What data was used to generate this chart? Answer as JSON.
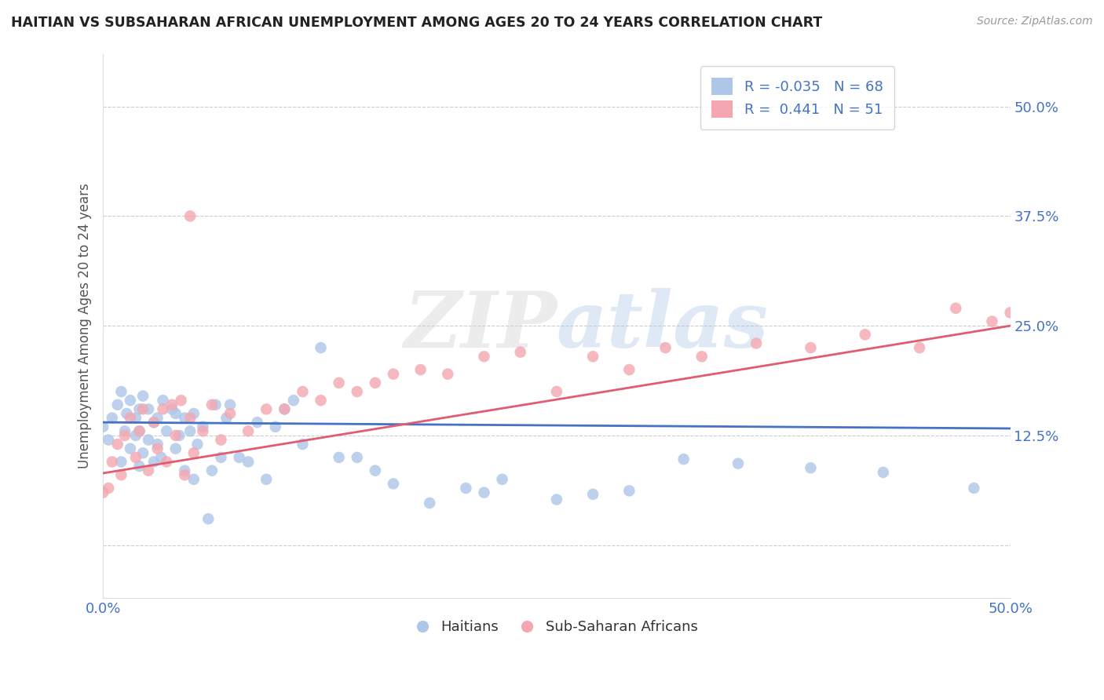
{
  "title": "HAITIAN VS SUBSAHARAN AFRICAN UNEMPLOYMENT AMONG AGES 20 TO 24 YEARS CORRELATION CHART",
  "source": "Source: ZipAtlas.com",
  "ylabel": "Unemployment Among Ages 20 to 24 years",
  "xlim": [
    0.0,
    0.5
  ],
  "ylim": [
    -0.06,
    0.56
  ],
  "yticks": [
    0.0,
    0.125,
    0.25,
    0.375,
    0.5
  ],
  "ytick_labels": [
    "",
    "12.5%",
    "25.0%",
    "37.5%",
    "50.0%"
  ],
  "haitian_R": -0.035,
  "haitian_N": 68,
  "subsaharan_R": 0.441,
  "subsaharan_N": 51,
  "haitian_color": "#aec6e8",
  "subsaharan_color": "#f4a7b0",
  "haitian_line_color": "#4472c4",
  "subsaharan_line_color": "#e05c70",
  "text_color": "#4472c4",
  "background_color": "#ffffff",
  "haitian_line_y0": 0.14,
  "haitian_line_y1": 0.133,
  "subsaharan_line_y0": 0.082,
  "subsaharan_line_y1": 0.25,
  "haitian_x": [
    0.0,
    0.003,
    0.005,
    0.008,
    0.01,
    0.01,
    0.012,
    0.013,
    0.015,
    0.015,
    0.018,
    0.018,
    0.02,
    0.02,
    0.02,
    0.022,
    0.022,
    0.025,
    0.025,
    0.028,
    0.028,
    0.03,
    0.03,
    0.032,
    0.033,
    0.035,
    0.038,
    0.04,
    0.04,
    0.042,
    0.045,
    0.045,
    0.048,
    0.05,
    0.05,
    0.052,
    0.055,
    0.058,
    0.06,
    0.062,
    0.065,
    0.068,
    0.07,
    0.075,
    0.08,
    0.085,
    0.09,
    0.095,
    0.1,
    0.105,
    0.11,
    0.12,
    0.13,
    0.14,
    0.15,
    0.16,
    0.18,
    0.2,
    0.21,
    0.22,
    0.25,
    0.27,
    0.29,
    0.32,
    0.35,
    0.39,
    0.43,
    0.48
  ],
  "haitian_y": [
    0.135,
    0.12,
    0.145,
    0.16,
    0.095,
    0.175,
    0.13,
    0.15,
    0.11,
    0.165,
    0.125,
    0.145,
    0.09,
    0.13,
    0.155,
    0.105,
    0.17,
    0.12,
    0.155,
    0.095,
    0.14,
    0.115,
    0.145,
    0.1,
    0.165,
    0.13,
    0.155,
    0.11,
    0.15,
    0.125,
    0.085,
    0.145,
    0.13,
    0.075,
    0.15,
    0.115,
    0.135,
    0.03,
    0.085,
    0.16,
    0.1,
    0.145,
    0.16,
    0.1,
    0.095,
    0.14,
    0.075,
    0.135,
    0.155,
    0.165,
    0.115,
    0.225,
    0.1,
    0.1,
    0.085,
    0.07,
    0.048,
    0.065,
    0.06,
    0.075,
    0.052,
    0.058,
    0.062,
    0.098,
    0.093,
    0.088,
    0.083,
    0.065
  ],
  "subsaharan_x": [
    0.0,
    0.003,
    0.005,
    0.008,
    0.01,
    0.012,
    0.015,
    0.018,
    0.02,
    0.022,
    0.025,
    0.028,
    0.03,
    0.033,
    0.035,
    0.038,
    0.04,
    0.043,
    0.045,
    0.048,
    0.05,
    0.055,
    0.06,
    0.065,
    0.07,
    0.08,
    0.09,
    0.1,
    0.11,
    0.12,
    0.13,
    0.14,
    0.15,
    0.16,
    0.175,
    0.19,
    0.21,
    0.23,
    0.25,
    0.27,
    0.29,
    0.31,
    0.33,
    0.36,
    0.39,
    0.42,
    0.45,
    0.47,
    0.49,
    0.048,
    0.5
  ],
  "subsaharan_y": [
    0.06,
    0.065,
    0.095,
    0.115,
    0.08,
    0.125,
    0.145,
    0.1,
    0.13,
    0.155,
    0.085,
    0.14,
    0.11,
    0.155,
    0.095,
    0.16,
    0.125,
    0.165,
    0.08,
    0.145,
    0.105,
    0.13,
    0.16,
    0.12,
    0.15,
    0.13,
    0.155,
    0.155,
    0.175,
    0.165,
    0.185,
    0.175,
    0.185,
    0.195,
    0.2,
    0.195,
    0.215,
    0.22,
    0.175,
    0.215,
    0.2,
    0.225,
    0.215,
    0.23,
    0.225,
    0.24,
    0.225,
    0.27,
    0.255,
    0.375,
    0.265
  ]
}
